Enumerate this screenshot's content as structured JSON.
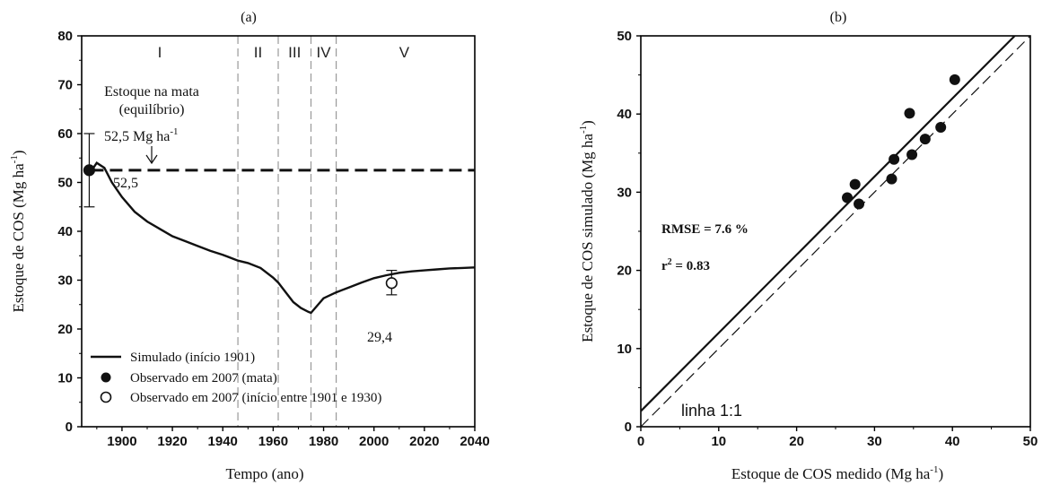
{
  "chart_data": [
    {
      "type": "line",
      "panel": "(a)",
      "xlabel": "Tempo (ano)",
      "ylabel": "Estoque de COS (Mg ha",
      "ylabel_sup": "-1",
      "ylabel_end": ")",
      "xlim": [
        1884,
        2040
      ],
      "ylim": [
        0,
        80
      ],
      "xticks": [
        1900,
        1920,
        1940,
        1960,
        1980,
        2000,
        2020,
        2040
      ],
      "xtick_labels": [
        "1900",
        "1920",
        "1940",
        "1960",
        "1980",
        "2000",
        "2020",
        "2040"
      ],
      "yticks": [
        0,
        10,
        20,
        30,
        40,
        50,
        60,
        70,
        80
      ],
      "ytick_labels": [
        "0",
        "10",
        "20",
        "30",
        "40",
        "50",
        "60",
        "70",
        "80"
      ],
      "period_boundaries": [
        1946,
        1962,
        1975,
        1985
      ],
      "periods": [
        {
          "label": "I",
          "x": 1915
        },
        {
          "label": "II",
          "x": 1954
        },
        {
          "label": "III",
          "x": 1968.5
        },
        {
          "label": "IV",
          "x": 1980
        },
        {
          "label": "V",
          "x": 2012
        }
      ],
      "equilibrium_value": 52.5,
      "annotations": {
        "forest_line1": "Estoque na mata",
        "forest_line2": "(equilíbrio)",
        "forest_value": "52,5 Mg ha",
        "forest_value_sup": "-1",
        "obs_forest_label": "52,5",
        "obs_2007_label": "29,4"
      },
      "series": [
        {
          "name": "Simulado (início 1901)",
          "style": "solid",
          "x": [
            1888,
            1890,
            1893,
            1896,
            1900,
            1905,
            1910,
            1915,
            1920,
            1925,
            1930,
            1935,
            1940,
            1946,
            1950,
            1955,
            1960,
            1962,
            1965,
            1968,
            1971,
            1974,
            1975,
            1977,
            1980,
            1985,
            1990,
            1995,
            2000,
            2005,
            2010,
            2015,
            2020,
            2025,
            2030,
            2035,
            2040
          ],
          "y": [
            52.5,
            54,
            53,
            50,
            47,
            44,
            42,
            40.5,
            39,
            38,
            37,
            36,
            35.2,
            34,
            33.5,
            32.5,
            30.5,
            29.5,
            27.5,
            25.5,
            24.3,
            23.5,
            23.3,
            24.5,
            26.3,
            27.5,
            28.5,
            29.5,
            30.4,
            31,
            31.5,
            31.8,
            32,
            32.2,
            32.4,
            32.5,
            32.6
          ]
        },
        {
          "name": "Observado em 2007 (mata)",
          "style": "filled-marker",
          "x": [
            1887
          ],
          "y": [
            52.5
          ],
          "err_low": [
            45
          ],
          "err_high": [
            60
          ]
        },
        {
          "name": "Observado em 2007 (início entre 1901 e 1930)",
          "style": "open-marker",
          "x": [
            2007
          ],
          "y": [
            29.4
          ],
          "err_low": [
            27
          ],
          "err_high": [
            32
          ]
        }
      ],
      "legend": [
        {
          "symbol": "line",
          "label": "Simulado (início 1901)"
        },
        {
          "symbol": "filled-circle",
          "label": "Observado em 2007 (mata)"
        },
        {
          "symbol": "open-circle",
          "label": "Observado em 2007 (início entre 1901 e 1930)"
        }
      ],
      "legend_position": "bottom-left"
    },
    {
      "type": "scatter",
      "panel": "(b)",
      "xlabel": "Estoque de COS medido (Mg ha",
      "xlabel_sup": "-1",
      "xlabel_end": ")",
      "ylabel": "Estoque de COS simulado  (Mg ha",
      "ylabel_sup": "-1",
      "ylabel_end": ")",
      "xlim": [
        0,
        50
      ],
      "ylim": [
        0,
        50
      ],
      "xticks": [
        0,
        10,
        20,
        30,
        40,
        50
      ],
      "xtick_labels": [
        "0",
        "10",
        "20",
        "30",
        "40",
        "50"
      ],
      "yticks": [
        0,
        10,
        20,
        30,
        40,
        50
      ],
      "ytick_labels": [
        "0",
        "10",
        "20",
        "30",
        "40",
        "50"
      ],
      "points": {
        "x": [
          26.5,
          27.5,
          28,
          32.2,
          32.5,
          34.5,
          34.8,
          36.5,
          38.5,
          40.3
        ],
        "y": [
          29.3,
          31,
          28.5,
          31.7,
          34.2,
          40.1,
          34.8,
          36.8,
          38.3,
          44.4
        ]
      },
      "regression": {
        "intercept": 2,
        "slope": 1
      },
      "identity_label": "linha 1:1",
      "stats": {
        "rmse": "RMSE = 7.6 %",
        "r2_prefix": "r",
        "r2_sup": "2",
        "r2_value": " = 0.83"
      }
    }
  ]
}
